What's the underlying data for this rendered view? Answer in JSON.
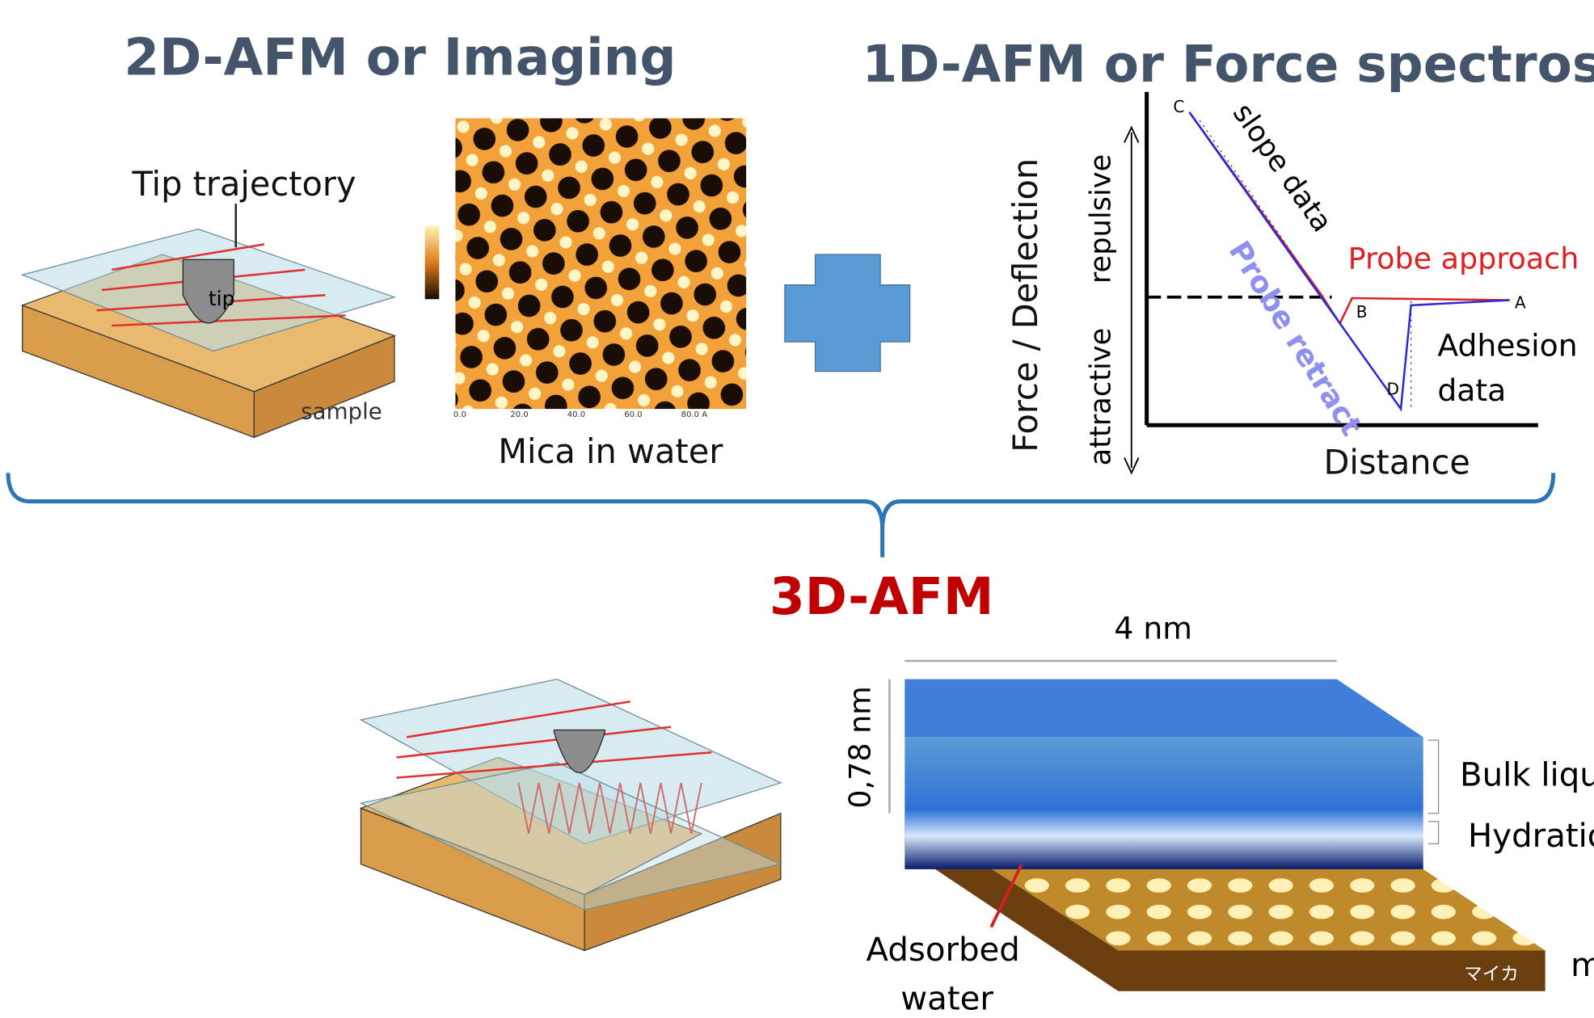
{
  "header": {
    "title_2d": "2D-AFM or Imaging",
    "title_1d": "1D-AFM or Force spectroscop",
    "title_3d": "3D-AFM"
  },
  "imaging": {
    "tip_trajectory": "Tip trajectory",
    "tip": "tip",
    "sample": "sample",
    "caption": "Mica in water",
    "axis_ticks": [
      "0.0",
      "20.0",
      "40.0",
      "60.0",
      "80.0 A"
    ]
  },
  "force_curve": {
    "y_label": "Force / Deflection",
    "repulsive": "repulsive",
    "attractive": "attractive",
    "x_label": "Distance",
    "points": [
      "A",
      "B",
      "C",
      "D"
    ],
    "slope": "slope data",
    "approach": "Probe approach",
    "retract": "Probe retract",
    "adhesion": [
      "Adhesion",
      "data"
    ]
  },
  "volume": {
    "tip": "",
    "width": "4 nm",
    "height": "0,78 nm",
    "bulk": "Bulk liqu",
    "hydration": "Hydratio",
    "adsorbed": [
      "Adsorbed",
      "water"
    ],
    "mica_jp": "マイカ",
    "side": "m"
  }
}
